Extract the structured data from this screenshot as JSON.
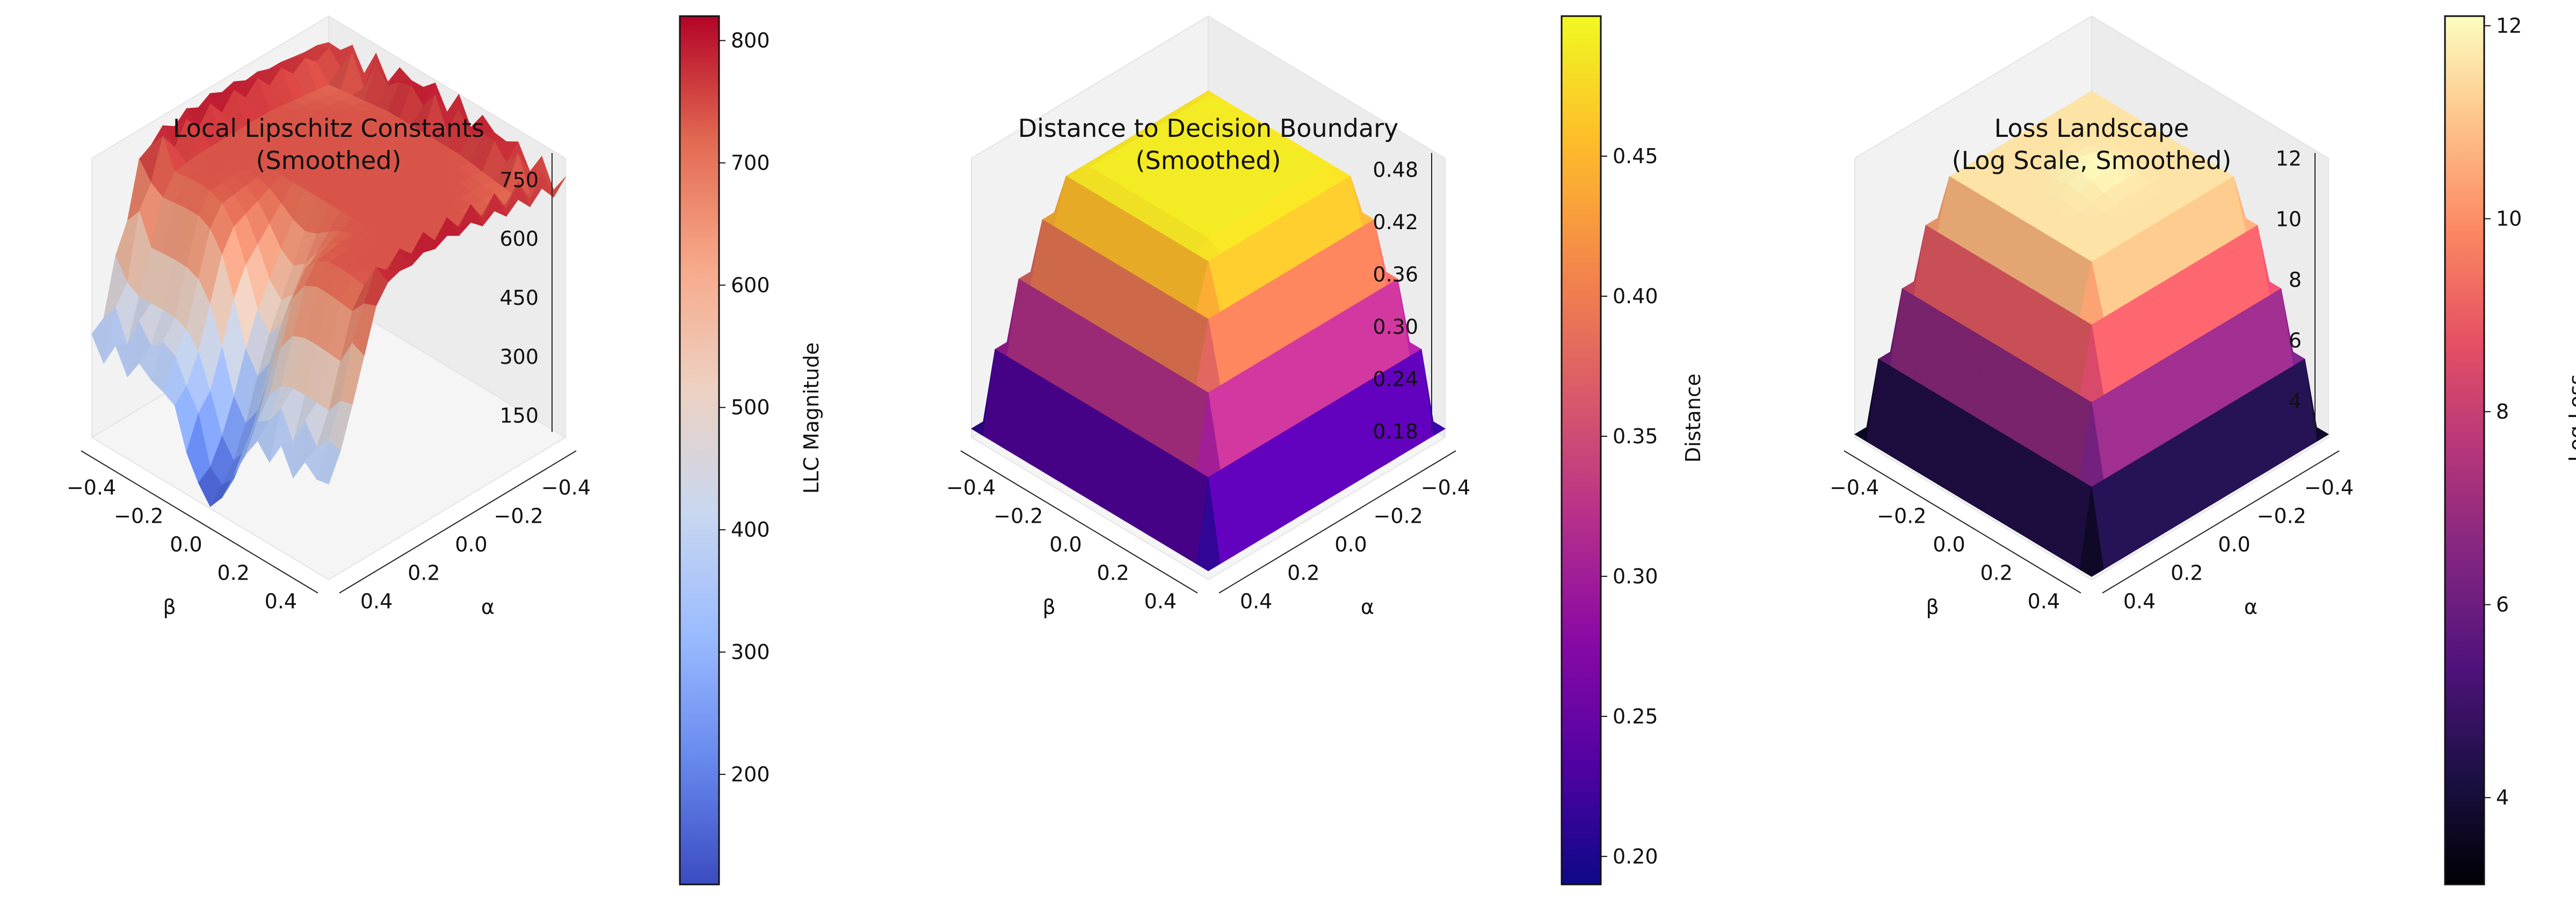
{
  "chart_data": [
    {
      "type": "surface3d",
      "title": "Local Lipschitz Constants",
      "subtitle": "(Smoothed)",
      "xlabel": "α",
      "ylabel": "β",
      "zlabel": "",
      "xlim": [
        -0.5,
        0.5
      ],
      "ylim": [
        -0.5,
        0.5
      ],
      "x_ticks": [
        "−0.4",
        "−0.2",
        "0.0",
        "0.2",
        "0.4"
      ],
      "y_ticks": [
        "−0.4",
        "−0.2",
        "0.0",
        "0.2",
        "0.4"
      ],
      "z_ticks": [
        150,
        300,
        450,
        600,
        750
      ],
      "zlim": [
        110,
        820
      ],
      "colormap": "coolwarm",
      "colorbar": {
        "label": "LLC Magnitude",
        "range": [
          110,
          820
        ],
        "ticks": [
          200,
          300,
          400,
          500,
          600,
          700,
          800
        ]
      },
      "surface_summary": {
        "plateau_value": 700,
        "edge_spike_max": 820,
        "central_trough_min": 115,
        "trough_location": "alpha 0.3 to 0.5, beta -0.1 to 0.1",
        "shoulder_values": [
          250,
          300
        ]
      }
    },
    {
      "type": "surface3d",
      "title": "Distance to Decision Boundary",
      "subtitle": "(Smoothed)",
      "xlabel": "α",
      "ylabel": "β",
      "zlabel": "",
      "xlim": [
        -0.5,
        0.5
      ],
      "ylim": [
        -0.5,
        0.5
      ],
      "x_ticks": [
        "−0.4",
        "−0.2",
        "0.0",
        "0.2",
        "0.4"
      ],
      "y_ticks": [
        "−0.4",
        "−0.2",
        "0.0",
        "0.2",
        "0.4"
      ],
      "z_ticks": [
        "0.18",
        "0.24",
        "0.30",
        "0.36",
        "0.42",
        "0.48"
      ],
      "zlim": [
        0.18,
        0.5
      ],
      "colormap": "plasma",
      "colorbar": {
        "label": "Distance",
        "range": [
          0.19,
          0.5
        ],
        "ticks": [
          "0.20",
          "0.25",
          "0.30",
          "0.35",
          "0.40",
          "0.45"
        ]
      },
      "surface_summary": {
        "plateau_value": 0.49,
        "edge_min": 0.19,
        "corner_min": 0.19
      }
    },
    {
      "type": "surface3d",
      "title": "Loss Landscape",
      "subtitle": "(Log Scale, Smoothed)",
      "xlabel": "α",
      "ylabel": "β",
      "zlabel": "",
      "xlim": [
        -0.5,
        0.5
      ],
      "ylim": [
        -0.5,
        0.5
      ],
      "x_ticks": [
        "−0.4",
        "−0.2",
        "0.0",
        "0.2",
        "0.4"
      ],
      "y_ticks": [
        "−0.4",
        "−0.2",
        "0.0",
        "0.2",
        "0.4"
      ],
      "z_ticks": [
        4,
        6,
        8,
        10,
        12
      ],
      "zlim": [
        3,
        12.2
      ],
      "colormap": "magma",
      "colorbar": {
        "label": "Log Loss",
        "range": [
          3.1,
          12.1
        ],
        "ticks": [
          4,
          6,
          8,
          10,
          12
        ]
      },
      "surface_summary": {
        "plateau_value": 11.6,
        "plateau_center": 12.1,
        "edge_min": 3.1
      }
    }
  ]
}
